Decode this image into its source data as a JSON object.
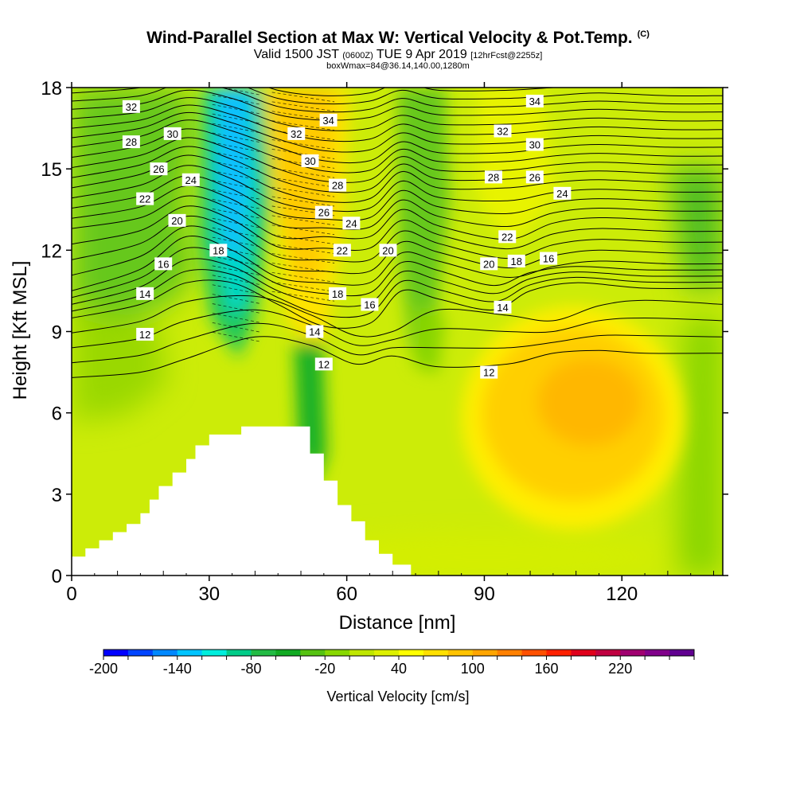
{
  "header": {
    "title": "Wind-Parallel Section at Max W: Vertical Velocity & Pot.Temp.",
    "title_mark": "(C)",
    "valid_prefix": "Valid 1500 JST",
    "valid_utc": "(0600Z)",
    "valid_date": "TUE 9 Apr 2019",
    "forecast": "[12hrFcst@2255z]",
    "box_info": "boxWmax=84@36.14,140.00,1280m"
  },
  "chart_data": {
    "type": "heatmap",
    "xlabel": "Distance [nm]",
    "ylabel": "Height [Kft MSL]",
    "xlim": [
      0,
      142
    ],
    "ylim": [
      0,
      18
    ],
    "x_ticks": [
      0,
      30,
      60,
      90,
      120
    ],
    "y_ticks": [
      0,
      3,
      6,
      9,
      12,
      15,
      18
    ],
    "grid": false,
    "colorbar": {
      "label": "Vertical Velocity [cm/s]",
      "tick_labels": [
        "-200",
        "-140",
        "-80",
        "-20",
        "40",
        "100",
        "160",
        "220"
      ],
      "colors": [
        "#0000ff",
        "#0044ff",
        "#0088ff",
        "#00c4ff",
        "#00eedd",
        "#00cc88",
        "#22bb44",
        "#11aa22",
        "#55c211",
        "#88d800",
        "#bfe600",
        "#ddf000",
        "#ffff00",
        "#ffe000",
        "#ffc300",
        "#ffa500",
        "#ff8000",
        "#ff5000",
        "#ff2000",
        "#e0001a",
        "#c00040",
        "#a00070",
        "#80008a",
        "#600090"
      ]
    },
    "velocity_regions": [
      {
        "name": "downdraft",
        "x": [
          30,
          42
        ],
        "y": [
          8.5,
          18
        ],
        "w_cms": -120
      },
      {
        "name": "updraft",
        "x": [
          43,
          58
        ],
        "y": [
          10,
          18
        ],
        "w_cms": 70
      },
      {
        "name": "downdraft",
        "x": [
          48,
          57
        ],
        "y": [
          3.5,
          8
        ],
        "w_cms": -40
      },
      {
        "name": "downdraft",
        "x": [
          71,
          80
        ],
        "y": [
          9,
          18
        ],
        "w_cms": -30
      },
      {
        "name": "updraft",
        "x": [
          90,
          125
        ],
        "y": [
          2,
          9
        ],
        "w_cms": 70
      }
    ],
    "terrain_kft": [
      [
        0,
        0.7
      ],
      [
        3,
        0.7
      ],
      [
        3,
        1.0
      ],
      [
        6,
        1.0
      ],
      [
        6,
        1.3
      ],
      [
        9,
        1.3
      ],
      [
        9,
        1.6
      ],
      [
        12,
        1.6
      ],
      [
        12,
        1.9
      ],
      [
        15,
        1.9
      ],
      [
        15,
        2.3
      ],
      [
        17,
        2.3
      ],
      [
        17,
        2.8
      ],
      [
        19,
        2.8
      ],
      [
        19,
        3.3
      ],
      [
        22,
        3.3
      ],
      [
        22,
        3.8
      ],
      [
        25,
        3.8
      ],
      [
        25,
        4.3
      ],
      [
        27,
        4.3
      ],
      [
        27,
        4.8
      ],
      [
        30,
        4.8
      ],
      [
        30,
        5.2
      ],
      [
        37,
        5.2
      ],
      [
        37,
        5.5
      ],
      [
        52,
        5.5
      ],
      [
        52,
        4.5
      ],
      [
        55,
        4.5
      ],
      [
        55,
        3.5
      ],
      [
        58,
        3.5
      ],
      [
        58,
        2.6
      ],
      [
        61,
        2.6
      ],
      [
        61,
        2.0
      ],
      [
        64,
        2.0
      ],
      [
        64,
        1.3
      ],
      [
        67,
        1.3
      ],
      [
        67,
        0.8
      ],
      [
        70,
        0.8
      ],
      [
        70,
        0.4
      ],
      [
        74,
        0.4
      ],
      [
        74,
        0
      ]
    ],
    "theta_contours": [
      {
        "label": "12",
        "points": [
          [
            0,
            7.3
          ],
          [
            15,
            7.5
          ],
          [
            25,
            8.0
          ],
          [
            40,
            8.8
          ],
          [
            52,
            8.5
          ],
          [
            62,
            7.8
          ],
          [
            70,
            8.1
          ],
          [
            80,
            7.7
          ],
          [
            95,
            7.8
          ],
          [
            105,
            8.2
          ],
          [
            115,
            8.3
          ],
          [
            125,
            8.2
          ],
          [
            142,
            8.2
          ]
        ]
      },
      {
        "label": "14",
        "points": [
          [
            0,
            9.5
          ],
          [
            15,
            10.0
          ],
          [
            25,
            10.8
          ],
          [
            35,
            10.8
          ],
          [
            45,
            10.0
          ],
          [
            55,
            9.2
          ],
          [
            65,
            9.3
          ],
          [
            72,
            10.5
          ],
          [
            80,
            10.2
          ],
          [
            92,
            9.8
          ],
          [
            100,
            10.5
          ],
          [
            110,
            10.8
          ],
          [
            125,
            10.6
          ],
          [
            142,
            10.6
          ]
        ]
      },
      {
        "label": "16",
        "points": [
          [
            0,
            10.5
          ],
          [
            15,
            11.3
          ],
          [
            25,
            12.5
          ],
          [
            35,
            12.0
          ],
          [
            45,
            11.0
          ],
          [
            55,
            10.8
          ],
          [
            65,
            10.8
          ],
          [
            72,
            11.9
          ],
          [
            80,
            11.6
          ],
          [
            95,
            11.0
          ],
          [
            105,
            11.4
          ],
          [
            115,
            11.6
          ],
          [
            130,
            11.5
          ],
          [
            142,
            11.5
          ]
        ]
      },
      {
        "label": "20",
        "points": [
          [
            0,
            12.8
          ],
          [
            15,
            13.2
          ],
          [
            25,
            14.0
          ],
          [
            35,
            13.5
          ],
          [
            45,
            12.5
          ],
          [
            55,
            12.5
          ],
          [
            65,
            12.5
          ],
          [
            72,
            13.5
          ],
          [
            80,
            12.9
          ],
          [
            95,
            12.4
          ],
          [
            105,
            13.0
          ],
          [
            115,
            13.2
          ],
          [
            130,
            13.1
          ],
          [
            142,
            13.1
          ]
        ]
      },
      {
        "label": "24",
        "points": [
          [
            0,
            14.3
          ],
          [
            15,
            14.8
          ],
          [
            25,
            15.5
          ],
          [
            35,
            15.0
          ],
          [
            45,
            14.2
          ],
          [
            55,
            13.8
          ],
          [
            65,
            13.9
          ],
          [
            72,
            14.9
          ],
          [
            80,
            14.3
          ],
          [
            95,
            14.3
          ],
          [
            105,
            14.5
          ],
          [
            115,
            14.6
          ],
          [
            130,
            14.5
          ],
          [
            142,
            14.5
          ]
        ]
      },
      {
        "label": "28",
        "points": [
          [
            0,
            15.8
          ],
          [
            15,
            16.2
          ],
          [
            25,
            16.8
          ],
          [
            35,
            16.4
          ],
          [
            45,
            15.8
          ],
          [
            55,
            15.3
          ],
          [
            65,
            15.3
          ],
          [
            72,
            16.0
          ],
          [
            80,
            15.6
          ],
          [
            95,
            15.6
          ],
          [
            105,
            15.8
          ],
          [
            115,
            15.9
          ],
          [
            130,
            15.8
          ],
          [
            142,
            15.8
          ]
        ]
      },
      {
        "label": "32",
        "points": [
          [
            0,
            17.2
          ],
          [
            15,
            17.4
          ],
          [
            25,
            17.9
          ],
          [
            35,
            17.6
          ],
          [
            45,
            17.0
          ],
          [
            55,
            16.8
          ],
          [
            65,
            16.9
          ],
          [
            72,
            17.3
          ],
          [
            80,
            17.0
          ],
          [
            95,
            17.0
          ],
          [
            105,
            17.1
          ],
          [
            115,
            17.2
          ],
          [
            130,
            17.1
          ],
          [
            142,
            17.1
          ]
        ]
      }
    ],
    "contour_labels": [
      {
        "text": "32",
        "x": 13,
        "y": 17.3
      },
      {
        "text": "30",
        "x": 22,
        "y": 16.3
      },
      {
        "text": "28",
        "x": 13,
        "y": 16.0
      },
      {
        "text": "26",
        "x": 19,
        "y": 15.0
      },
      {
        "text": "24",
        "x": 26,
        "y": 14.6
      },
      {
        "text": "22",
        "x": 16,
        "y": 13.9
      },
      {
        "text": "20",
        "x": 23,
        "y": 13.1
      },
      {
        "text": "18",
        "x": 32,
        "y": 12.0
      },
      {
        "text": "16",
        "x": 20,
        "y": 11.5
      },
      {
        "text": "14",
        "x": 16,
        "y": 10.4
      },
      {
        "text": "12",
        "x": 16,
        "y": 8.9
      },
      {
        "text": "32",
        "x": 49,
        "y": 16.3
      },
      {
        "text": "34",
        "x": 56,
        "y": 16.8
      },
      {
        "text": "30",
        "x": 52,
        "y": 15.3
      },
      {
        "text": "28",
        "x": 58,
        "y": 14.4
      },
      {
        "text": "26",
        "x": 55,
        "y": 13.4
      },
      {
        "text": "24",
        "x": 61,
        "y": 13.0
      },
      {
        "text": "22",
        "x": 59,
        "y": 12.0
      },
      {
        "text": "20",
        "x": 69,
        "y": 12.0
      },
      {
        "text": "18",
        "x": 58,
        "y": 10.4
      },
      {
        "text": "16",
        "x": 65,
        "y": 10.0
      },
      {
        "text": "14",
        "x": 53,
        "y": 9.0
      },
      {
        "text": "12",
        "x": 55,
        "y": 7.8
      },
      {
        "text": "34",
        "x": 101,
        "y": 17.5
      },
      {
        "text": "32",
        "x": 94,
        "y": 16.4
      },
      {
        "text": "30",
        "x": 101,
        "y": 15.9
      },
      {
        "text": "28",
        "x": 92,
        "y": 14.7
      },
      {
        "text": "26",
        "x": 101,
        "y": 14.7
      },
      {
        "text": "24",
        "x": 107,
        "y": 14.1
      },
      {
        "text": "22",
        "x": 95,
        "y": 12.5
      },
      {
        "text": "20",
        "x": 91,
        "y": 11.5
      },
      {
        "text": "18",
        "x": 97,
        "y": 11.6
      },
      {
        "text": "16",
        "x": 104,
        "y": 11.7
      },
      {
        "text": "14",
        "x": 94,
        "y": 9.9
      },
      {
        "text": "12",
        "x": 91,
        "y": 7.5
      }
    ]
  }
}
